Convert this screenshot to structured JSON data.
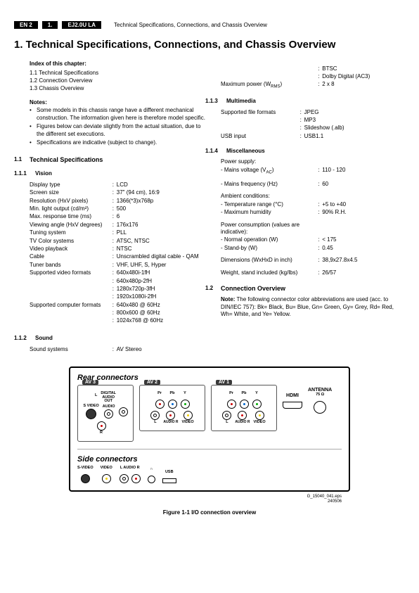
{
  "header": {
    "badge1": "EN 2",
    "badge2": "1.",
    "badge3": "EJ2.0U LA",
    "text": "Technical Specifications, Connections, and Chassis Overview"
  },
  "h1": "1.   Technical Specifications, Connections, and Chassis Overview",
  "index": {
    "title": "Index of this chapter:",
    "items": [
      "1.1  Technical Specifications",
      "1.2  Connection Overview",
      "1.3  Chassis Overview"
    ]
  },
  "notes": {
    "title": "Notes:",
    "items": [
      "Some models in this chassis range have a different mechanical construction. The information given here is therefore model specific.",
      "Figures below can deviate slightly from the actual situation, due to the different set executions.",
      "Specifications are indicative (subject to change)."
    ]
  },
  "sec11": {
    "num": "1.1",
    "title": "Technical Specifications"
  },
  "sub111": {
    "num": "1.1.1",
    "title": "Vision"
  },
  "vision": [
    {
      "l": "Display type",
      "v": "LCD"
    },
    {
      "l": "Screen size",
      "v": "37\" (94 cm), 16:9"
    },
    {
      "l": "Resolution (HxV pixels)",
      "v": "1366(*3)x768p"
    },
    {
      "l": "Min. light output (cd/m²)",
      "v": "500"
    },
    {
      "l": "Max. response time (ms)",
      "v": "6"
    },
    {
      "l": "Viewing angle (HxV degrees)",
      "v": "176x176"
    },
    {
      "l": "Tuning system",
      "v": "PLL"
    },
    {
      "l": "TV Color systems",
      "v": "ATSC, NTSC"
    },
    {
      "l": "Video playback",
      "v": "NTSC"
    },
    {
      "l": "Cable",
      "v": "Unscrambled digital cable - QAM"
    },
    {
      "l": "Tuner bands",
      "v": "VHF, UHF, S, Hyper"
    },
    {
      "l": "Supported video formats",
      "v": "640x480i-1fH"
    },
    {
      "l": "",
      "v": "640x480p-2fH"
    },
    {
      "l": "",
      "v": "1280x720p-3fH"
    },
    {
      "l": "",
      "v": "1920x1080i-2fH"
    },
    {
      "l": "Supported computer formats",
      "v": "640x480 @ 60Hz"
    },
    {
      "l": "",
      "v": "800x600 @ 60Hz"
    },
    {
      "l": "",
      "v": "1024x768 @ 60Hz"
    }
  ],
  "sub112": {
    "num": "1.1.2",
    "title": "Sound"
  },
  "sound": [
    {
      "l": "Sound systems",
      "v": "AV Stereo"
    }
  ],
  "rtop": [
    {
      "l": "",
      "v": "BTSC"
    },
    {
      "l": "",
      "v": "Dolby Digital (AC3)"
    },
    {
      "l": "Maximum power (W<sub>RMS</sub>)",
      "v": "2 x 8"
    }
  ],
  "sub113": {
    "num": "1.1.3",
    "title": "Multimedia"
  },
  "multimedia": [
    {
      "l": "Supported file formats",
      "v": "JPEG"
    },
    {
      "l": "",
      "v": "MP3"
    },
    {
      "l": "",
      "v": "Slideshow (.alb)"
    },
    {
      "l": "USB input",
      "v": "USB1.1"
    }
  ],
  "sub114": {
    "num": "1.1.4",
    "title": "Miscellaneous"
  },
  "misc1": [
    {
      "l": "Power supply:",
      "v": "",
      "nosep": true
    },
    {
      "l": "- Mains voltage (V<sub>AC</sub>)",
      "v": "110 - 120"
    },
    {
      "l": "",
      "v": "",
      "spacer": true
    },
    {
      "l": "- Mains frequency (Hz)",
      "v": "60"
    },
    {
      "l": "",
      "v": "",
      "spacer": true
    },
    {
      "l": "Ambient conditions:",
      "v": "",
      "nosep": true
    },
    {
      "l": "- Temperature range (°C)",
      "v": "+5 to +40"
    },
    {
      "l": "- Maximum humidity",
      "v": "90% R.H."
    },
    {
      "l": "",
      "v": "",
      "spacer": true
    },
    {
      "l": "Power consumption (values are indicative):",
      "v": "",
      "nosep": true
    },
    {
      "l": "- Normal operation (W)",
      "v": "< 175"
    },
    {
      "l": "- Stand-by (W)",
      "v": "0.45"
    },
    {
      "l": "",
      "v": "",
      "spacer": true
    },
    {
      "l": "Dimensions (WxHxD in inch)",
      "v": "38,9x27.8x4.5"
    },
    {
      "l": "",
      "v": "",
      "spacer": true
    },
    {
      "l": "Weight, stand included (kg/lbs)",
      "v": "26/57"
    }
  ],
  "sec12": {
    "num": "1.2",
    "title": "Connection Overview"
  },
  "connNote": "<b>Note:</b> The following connector color abbreviations are used (acc. to DIN/IEC 757): Bk= Black, Bu= Blue, Gn= Green, Gy= Grey, Rd= Red, Wh= White, and Ye= Yellow.",
  "diagram": {
    "rearTitle": "Rear connectors",
    "av3": "AV 3",
    "av2": "AV 2",
    "av1": "AV 1",
    "hdmi": "HDMI",
    "antenna": "ANTENNA",
    "ant75": "75 Ω",
    "svideo": "S VIDEO",
    "audio": "AUDIO",
    "dao": "DIGITAL\nAUDIO\nOUT",
    "L": "L",
    "R": "R",
    "Pr": "Pr",
    "Pb": "Pb",
    "Y": "Y",
    "VIDEO": "VIDEO",
    "sideTitle": "Side connectors",
    "side": {
      "sv": "S-VIDEO",
      "vid": "VIDEO",
      "la": "L  AUDIO  R",
      "hp": "🎧",
      "usb": "USB"
    }
  },
  "figMeta1": "G_15040_041.eps",
  "figMeta2": "240506",
  "figCaption": "Figure 1-1 I/O connection overview"
}
